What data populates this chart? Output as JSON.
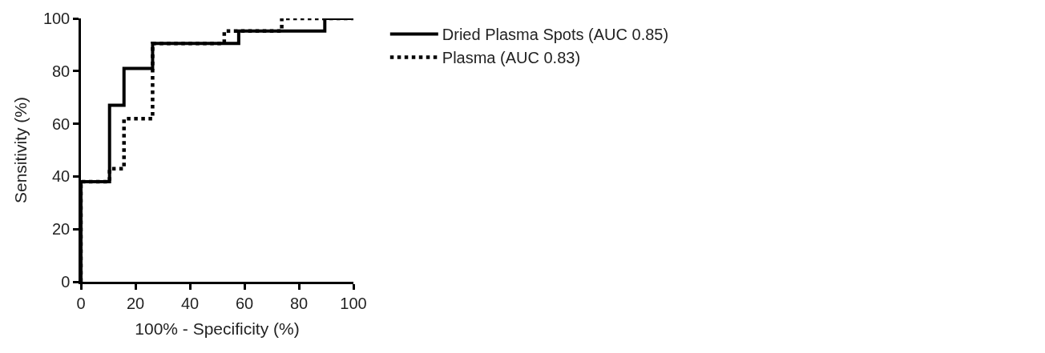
{
  "chart_data": {
    "type": "step",
    "xlabel": "100% - Specificity (%)",
    "ylabel": "Sensitivity (%)",
    "xlim": [
      0,
      100
    ],
    "xticks": [
      0,
      20,
      40,
      60,
      80,
      100
    ],
    "ylim": [
      0,
      100
    ],
    "yticks": [
      0,
      20,
      40,
      60,
      80,
      100
    ],
    "legend": "top right",
    "marker": "none",
    "series": [
      {
        "name": "Dried Plasma Spots (AUC 0.85)",
        "color": "#000000",
        "line_style": "solid",
        "x": [
          0,
          0,
          10.5,
          15.8,
          26.3,
          57.9,
          89.5,
          100
        ],
        "values": [
          0,
          38,
          67,
          81,
          90.5,
          95.2,
          100,
          100
        ]
      },
      {
        "name": "Plasma (AUC 0.83)",
        "color": "#000000",
        "line_style": "dotted",
        "x": [
          0,
          0,
          10.5,
          15.8,
          26.3,
          52.6,
          73.7,
          100
        ],
        "values": [
          0,
          38,
          42.9,
          61.9,
          90.5,
          95.2,
          100,
          100
        ]
      }
    ]
  }
}
